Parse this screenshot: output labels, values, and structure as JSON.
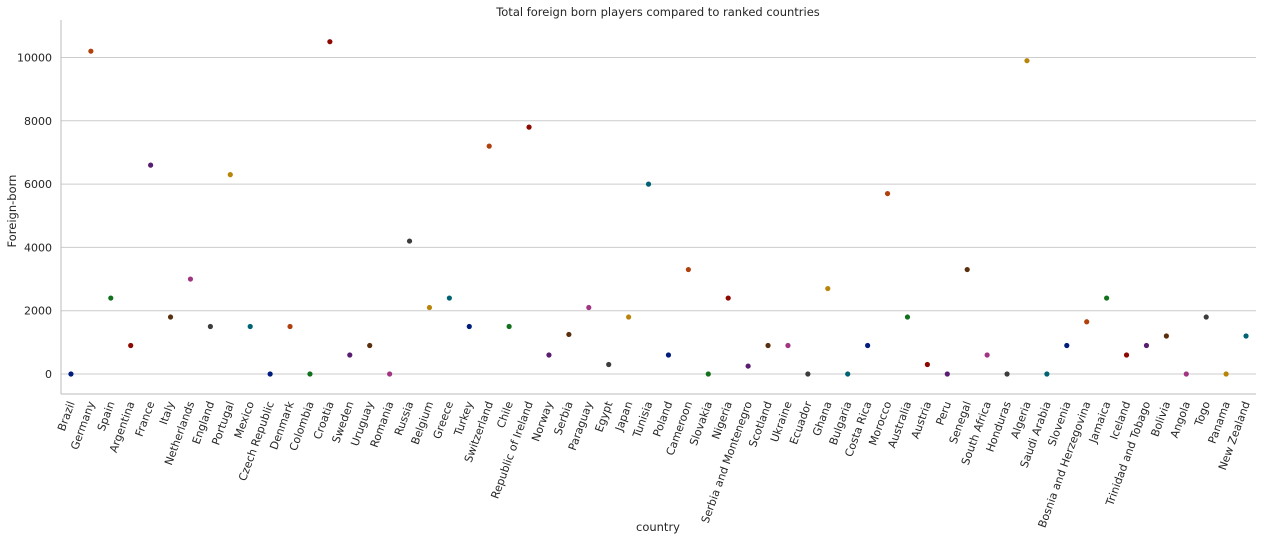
{
  "chart_data": {
    "type": "scatter",
    "title": "Total foreign born players compared to ranked countries",
    "xlabel": "country",
    "ylabel": "Foreign-born",
    "ylim": [
      -600,
      11150
    ],
    "yticks": [
      0,
      2000,
      4000,
      6000,
      8000,
      10000
    ],
    "grid": "horizontal",
    "palette": [
      "#001c7f",
      "#b1400d",
      "#12711c",
      "#8c0800",
      "#591e71",
      "#592f0d",
      "#a23582",
      "#3c3c3c",
      "#b8850a",
      "#006374"
    ],
    "categories": [
      "Brazil",
      "Germany",
      "Spain",
      "Argentina",
      "France",
      "Italy",
      "Netherlands",
      "England",
      "Portugal",
      "Mexico",
      "Czech Republic",
      "Denmark",
      "Colombia",
      "Croatia",
      "Sweden",
      "Uruguay",
      "Romania",
      "Russia",
      "Belgium",
      "Greece",
      "Turkey",
      "Switzerland",
      "Chile",
      "Republic of Ireland",
      "Norway",
      "Serbia",
      "Paraguay",
      "Egypt",
      "Japan",
      "Tunisia",
      "Poland",
      "Cameroon",
      "Slovakia",
      "Nigeria",
      "Serbia and Montenegro",
      "Scotland",
      "Ukraine",
      "Ecuador",
      "Ghana",
      "Bulgaria",
      "Costa Rica",
      "Morocco",
      "Australia",
      "Austria",
      "Peru",
      "Senegal",
      "South Africa",
      "Honduras",
      "Algeria",
      "Saudi Arabia",
      "Slovenia",
      "Bosnia and Herzegovina",
      "Jamaica",
      "Iceland",
      "Trinidad and Tobago",
      "Bolivia",
      "Angola",
      "Togo",
      "Panama",
      "New Zealand"
    ],
    "values": [
      0,
      10200,
      2400,
      900,
      6600,
      1800,
      3000,
      1500,
      6300,
      1500,
      0,
      1500,
      0,
      10500,
      600,
      900,
      0,
      4200,
      2100,
      2400,
      1500,
      7200,
      1500,
      7800,
      600,
      1250,
      2100,
      300,
      1800,
      6000,
      600,
      3300,
      0,
      2400,
      250,
      900,
      900,
      0,
      2700,
      0,
      900,
      5700,
      1800,
      300,
      0,
      3300,
      600,
      0,
      9900,
      0,
      900,
      1650,
      2400,
      600,
      900,
      1200,
      0,
      1800,
      0,
      1200
    ]
  }
}
